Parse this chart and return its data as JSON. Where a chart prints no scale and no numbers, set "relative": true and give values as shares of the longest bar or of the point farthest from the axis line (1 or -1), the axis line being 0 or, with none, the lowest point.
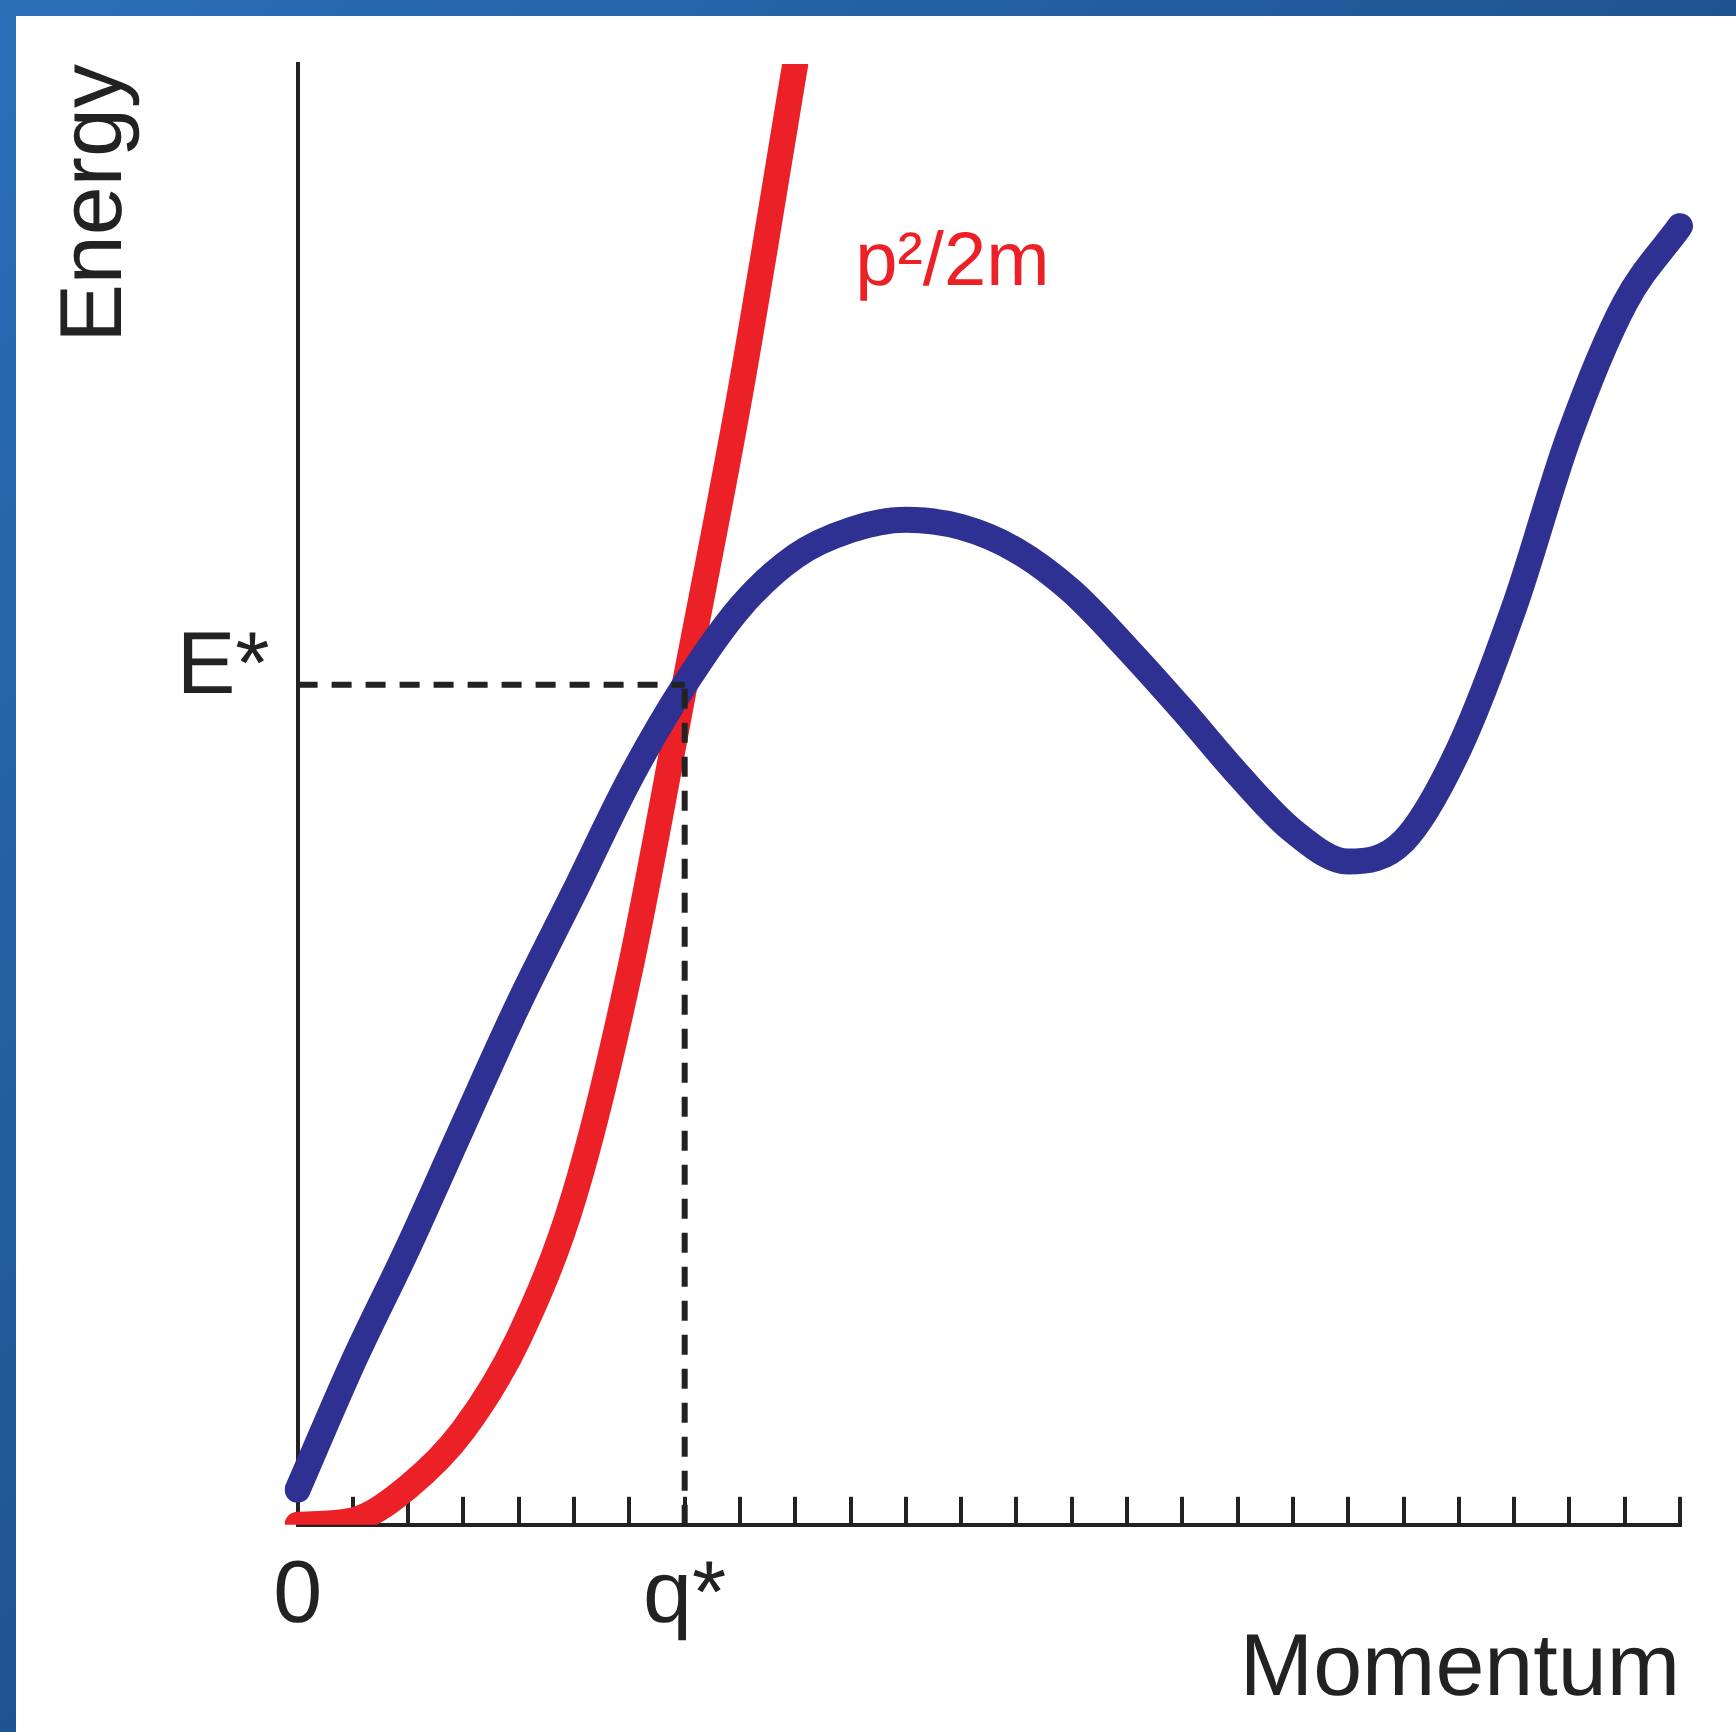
{
  "chart_data": {
    "type": "line",
    "relative": true,
    "xlabel": "Momentum",
    "ylabel": "Energy",
    "categories": [
      "0",
      null,
      null,
      null,
      null,
      null,
      null,
      "q*",
      null,
      null,
      null,
      null,
      null,
      null,
      null,
      null,
      null,
      null,
      null,
      null,
      null,
      null,
      null,
      null,
      null,
      null
    ],
    "series": [
      {
        "color": "#2e3192",
        "values": [
          0.024,
          0.111,
          0.19,
          0.274,
          0.357,
          0.433,
          0.51,
          0.575,
          0.628,
          0.663,
          0.681,
          0.688,
          0.683,
          0.667,
          0.639,
          0.6,
          0.558,
          0.514,
          0.475,
          0.454,
          0.468,
          0.531,
          0.628,
          0.746,
          0.836,
          0.889
        ]
      },
      {
        "name": "p²/2m",
        "color": "#ec2027",
        "values": [
          0,
          0.003,
          0.026,
          0.065,
          0.128,
          0.225,
          0.378,
          0.575,
          0.774,
          1.0,
          null,
          null,
          null,
          null,
          null,
          null,
          null,
          null,
          null,
          null,
          null,
          null,
          null,
          null,
          null,
          null
        ]
      }
    ],
    "ref_lines": [
      {
        "axis": "y",
        "value": 0.575,
        "label": "E*",
        "line_style": "dashed",
        "color": "#222222"
      },
      {
        "axis": "x",
        "value": "q*",
        "line_style": "dashed",
        "color": "#222222"
      }
    ],
    "legend": false,
    "marker": "none",
    "line_style": "solid"
  }
}
